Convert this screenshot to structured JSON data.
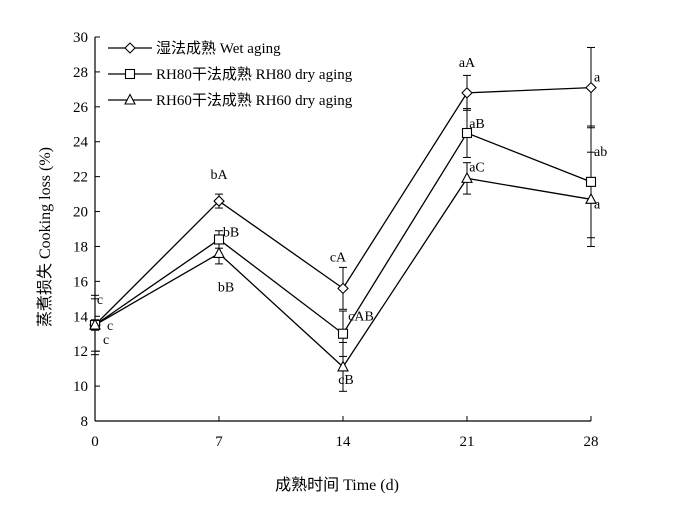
{
  "chart_data": {
    "type": "line",
    "xlabel": "成熟时间 Time (d)",
    "ylabel": "蒸煮损失 Cooking loss (%)",
    "x": [
      0,
      7,
      14,
      21,
      28
    ],
    "xlim": [
      0,
      28
    ],
    "ylim": [
      8,
      30
    ],
    "xticks": [
      "0",
      "7",
      "14",
      "21",
      "28"
    ],
    "yticks": [
      "8",
      "10",
      "12",
      "14",
      "16",
      "18",
      "20",
      "22",
      "24",
      "26",
      "28",
      "30"
    ],
    "legend_position": "top-left",
    "grid": false,
    "series": [
      {
        "name": "湿法成熟 Wet aging",
        "marker": "diamond",
        "values": [
          13.5,
          20.6,
          15.6,
          26.8,
          27.1
        ],
        "errors": [
          1.7,
          0.4,
          1.2,
          1.0,
          2.3
        ],
        "labels": [
          "c",
          "bA",
          "cA",
          "aA",
          "a"
        ]
      },
      {
        "name": "RH80干法成熟  RH80 dry aging",
        "marker": "square",
        "values": [
          13.5,
          18.4,
          13.0,
          24.5,
          21.7
        ],
        "errors": [
          0.3,
          0.5,
          1.3,
          1.4,
          3.2
        ],
        "labels": [
          "c",
          "bB",
          "cAB",
          "aB",
          "ab"
        ]
      },
      {
        "name": "RH60干法成熟  RH60 dry aging",
        "marker": "triangle",
        "values": [
          13.5,
          17.6,
          11.1,
          21.9,
          20.7
        ],
        "errors": [
          1.5,
          0.6,
          1.4,
          0.9,
          2.7
        ],
        "labels": [
          "c",
          "bB",
          "cB",
          "aC",
          "a"
        ]
      }
    ]
  }
}
